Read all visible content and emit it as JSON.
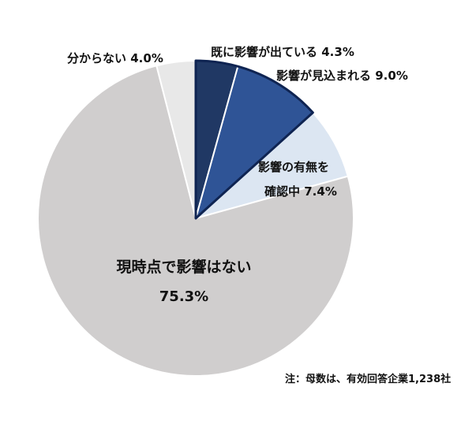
{
  "chart_data": {
    "type": "pie",
    "start_angle_deg": 0,
    "direction": "clockwise",
    "slices": [
      {
        "label": "既に影響が出ている",
        "value_text": "4.3%",
        "value": 4.3,
        "color": "#203864",
        "exploded": true
      },
      {
        "label": "影響が見込まれる",
        "value_text": "9.0%",
        "value": 9.0,
        "color": "#2F5496",
        "exploded": true
      },
      {
        "label_lines": [
          "影響の有無を",
          "確認中"
        ],
        "value_text": "7.4%",
        "value": 7.4,
        "color": "#DCE6F2",
        "exploded": false
      },
      {
        "label": "現時点で影響はない",
        "value_text": "75.3%",
        "value": 75.3,
        "color": "#D0CECE",
        "exploded": false
      },
      {
        "label": "分からない",
        "value_text": "4.0%",
        "value": 4.0,
        "color": "#E8E8E8",
        "exploded": false
      }
    ],
    "highlight_stroke_color": "#0F2452"
  },
  "note": "注：母数は、有効回答企業1,238社"
}
